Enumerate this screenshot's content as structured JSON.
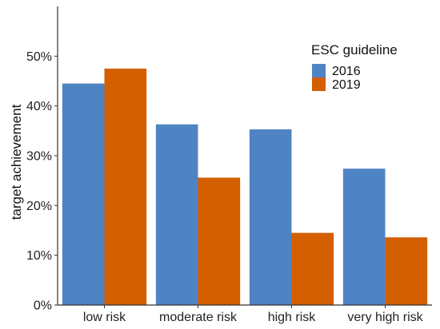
{
  "chart_data": {
    "type": "bar",
    "categories": [
      "low risk",
      "moderate risk",
      "high risk",
      "very high risk"
    ],
    "series": [
      {
        "name": "2016",
        "values": [
          44.5,
          36.3,
          35.3,
          27.4
        ],
        "color": "#4f84c4"
      },
      {
        "name": "2019",
        "values": [
          47.5,
          25.6,
          14.5,
          13.6
        ],
        "color": "#d35f00"
      }
    ],
    "ylabel": "target achievement",
    "ylim": [
      0,
      60
    ],
    "yticks": [
      0,
      10,
      20,
      30,
      40,
      50
    ],
    "ytick_labels": [
      "0%",
      "10%",
      "20%",
      "30%",
      "40%",
      "50%"
    ],
    "legend": {
      "title": "ESC guideline",
      "placement": "top-right"
    },
    "grid": false
  }
}
